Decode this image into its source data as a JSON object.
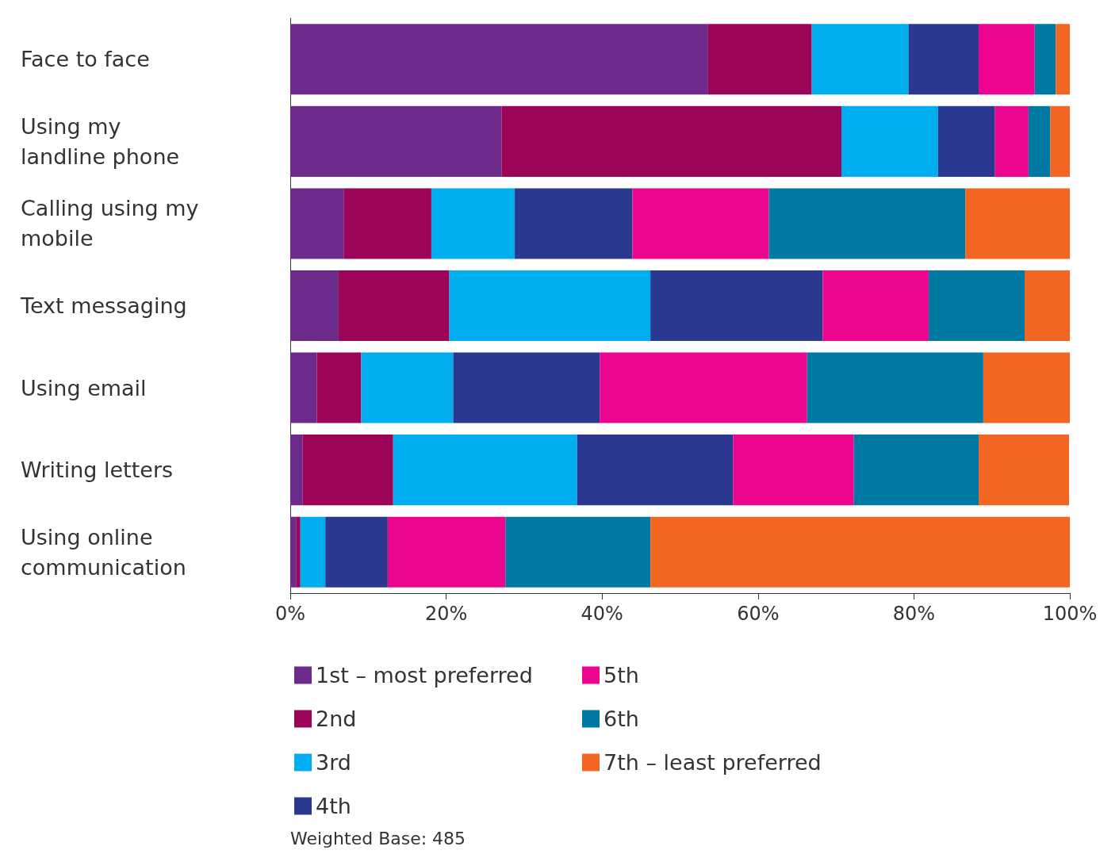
{
  "chart_data": {
    "type": "bar",
    "orientation": "horizontal",
    "stacked": true,
    "categories": [
      "Face to face",
      "Using my landline phone",
      "Calling using my mobile",
      "Text messaging",
      "Using email",
      "Writing letters",
      "Using online communication"
    ],
    "series": [
      {
        "name": "1st – most preferred",
        "color": "#6c2a8b",
        "values": [
          53.6,
          27.1,
          6.9,
          6.2,
          3.4,
          1.6,
          0.8
        ]
      },
      {
        "name": "2nd",
        "color": "#9c0458",
        "values": [
          13.3,
          43.6,
          11.2,
          14.2,
          5.7,
          11.6,
          0.5
        ]
      },
      {
        "name": "3rd",
        "color": "#00aeef",
        "values": [
          12.4,
          12.4,
          10.7,
          25.8,
          11.8,
          23.6,
          3.2
        ]
      },
      {
        "name": "4th",
        "color": "#2a388f",
        "values": [
          9.0,
          7.3,
          15.1,
          22.1,
          18.8,
          20.0,
          8.0
        ]
      },
      {
        "name": "5th",
        "color": "#ec058e",
        "values": [
          7.2,
          4.3,
          17.5,
          13.6,
          26.6,
          15.5,
          15.1
        ]
      },
      {
        "name": "6th",
        "color": "#0079a2",
        "values": [
          2.7,
          2.8,
          25.2,
          12.3,
          22.6,
          16.0,
          18.6
        ]
      },
      {
        "name": "7th – least preferred",
        "color": "#f26522",
        "values": [
          1.8,
          2.5,
          13.4,
          5.8,
          11.1,
          11.6,
          53.8
        ]
      }
    ],
    "xlim": [
      0,
      100
    ],
    "xticks": [
      {
        "value": 0,
        "label": "0%"
      },
      {
        "value": 20,
        "label": "20%"
      },
      {
        "value": 40,
        "label": "40%"
      },
      {
        "value": 60,
        "label": "60%"
      },
      {
        "value": 80,
        "label": "80%"
      },
      {
        "value": 100,
        "label": "100%"
      }
    ],
    "grid": false,
    "legend": "bottom left",
    "annotations": [
      "Weighted Base: 485"
    ]
  }
}
